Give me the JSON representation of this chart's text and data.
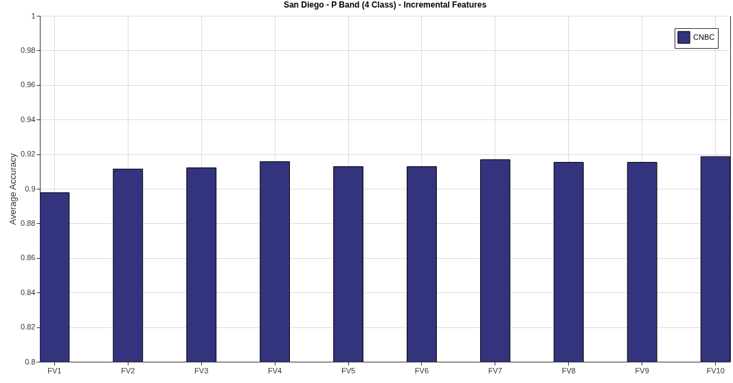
{
  "chart_data": {
    "type": "bar",
    "title": "San Diego - P Band (4 Class) - Incremental Features",
    "ylabel": "Average Accuracy",
    "categories": [
      "FV1",
      "FV2",
      "FV3",
      "FV4",
      "FV5",
      "FV6",
      "FV7",
      "FV8",
      "FV9",
      "FV10"
    ],
    "series": [
      {
        "name": "CNBC",
        "color": "#34337e",
        "values": [
          0.8977,
          0.9114,
          0.9121,
          0.9157,
          0.9128,
          0.9128,
          0.9168,
          0.9153,
          0.9153,
          0.9186
        ]
      }
    ],
    "ylim": [
      0.8,
      1
    ],
    "yticks": [
      0.8,
      0.82,
      0.84,
      0.86,
      0.88,
      0.9,
      0.92,
      0.94,
      0.96,
      0.98,
      1
    ],
    "grid": true,
    "legend": "top right"
  }
}
